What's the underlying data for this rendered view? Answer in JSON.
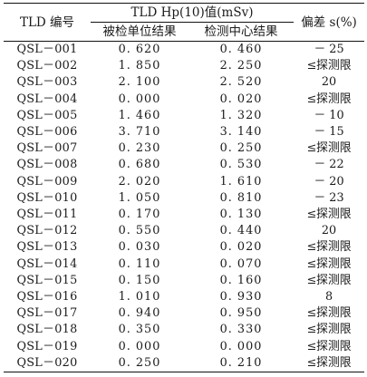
{
  "header": {
    "id_label": "TLD 编号",
    "group_label": "TLD Hp(10)值(mSv)",
    "sub_unit": "被检单位结果",
    "sub_center": "检测中心结果",
    "deviation_label": "偏差 s(%)"
  },
  "rows": [
    {
      "id": "QSL－001",
      "unit": "0. 620",
      "center": "0. 460",
      "dev": "－ 25"
    },
    {
      "id": "QSL－002",
      "unit": "1. 850",
      "center": "2. 250",
      "dev": "≤探测限"
    },
    {
      "id": "QSL－003",
      "unit": "2. 100",
      "center": "2. 520",
      "dev": "20"
    },
    {
      "id": "QSL－004",
      "unit": "0. 000",
      "center": "0. 020",
      "dev": "≤探测限"
    },
    {
      "id": "QSL－005",
      "unit": "1. 460",
      "center": "1. 320",
      "dev": "－ 10"
    },
    {
      "id": "QSL－006",
      "unit": "3. 710",
      "center": "3. 140",
      "dev": "－ 15"
    },
    {
      "id": "QSL－007",
      "unit": "0. 230",
      "center": "0. 250",
      "dev": "≤探测限"
    },
    {
      "id": "QSL－008",
      "unit": "0. 680",
      "center": "0. 530",
      "dev": "－ 22"
    },
    {
      "id": "QSL－009",
      "unit": "2. 020",
      "center": "1. 610",
      "dev": "－ 20"
    },
    {
      "id": "QSL－010",
      "unit": "1. 050",
      "center": "0. 810",
      "dev": "－ 23"
    },
    {
      "id": "QSL－011",
      "unit": "0. 170",
      "center": "0. 130",
      "dev": "≤探测限"
    },
    {
      "id": "QSL－012",
      "unit": "0. 550",
      "center": "0. 440",
      "dev": "20"
    },
    {
      "id": "QSL－013",
      "unit": "0. 030",
      "center": "0. 020",
      "dev": "≤探测限"
    },
    {
      "id": "QSL－014",
      "unit": "0. 110",
      "center": "0. 070",
      "dev": "≤探测限"
    },
    {
      "id": "QSL－015",
      "unit": "0. 150",
      "center": "0. 160",
      "dev": "≤探测限"
    },
    {
      "id": "QSL－016",
      "unit": "1. 010",
      "center": "0. 930",
      "dev": "8"
    },
    {
      "id": "QSL－017",
      "unit": "0. 940",
      "center": "0. 950",
      "dev": "≤探测限"
    },
    {
      "id": "QSL－018",
      "unit": "0. 350",
      "center": "0. 330",
      "dev": "≤探测限"
    },
    {
      "id": "QSL－019",
      "unit": "0. 000",
      "center": "0. 000",
      "dev": "≤探测限"
    },
    {
      "id": "QSL－020",
      "unit": "0. 250",
      "center": "0. 210",
      "dev": "≤探测限"
    }
  ]
}
